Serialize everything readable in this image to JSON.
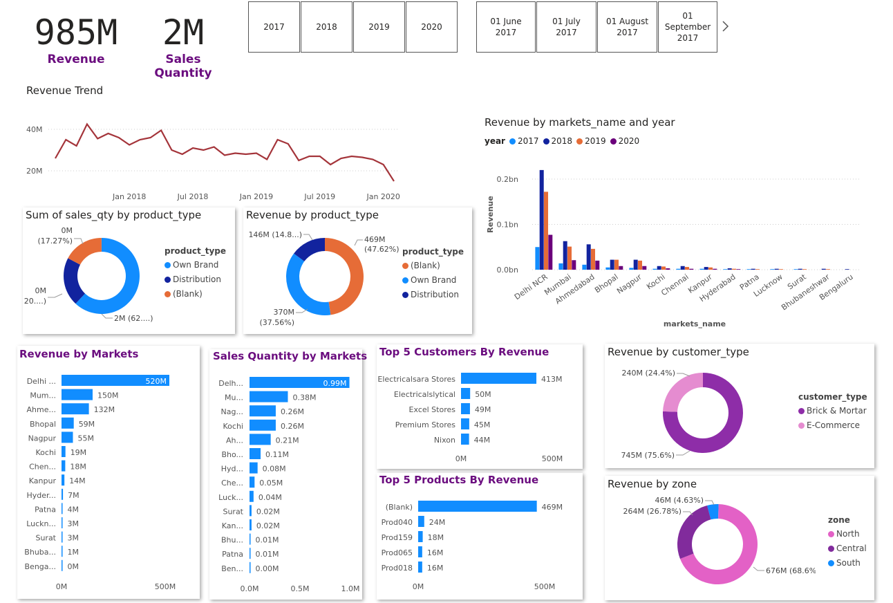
{
  "kpis": [
    {
      "value": "985M",
      "label": "Revenue"
    },
    {
      "value": "2M",
      "label": "Sales Quantity"
    }
  ],
  "year_slicer": [
    "2017",
    "2018",
    "2019",
    "2020"
  ],
  "date_slicer": [
    "01 June 2017",
    "01 July 2017",
    "01 August 2017",
    "01 September 2017"
  ],
  "colors": {
    "blue": "#118DFF",
    "navy": "#12239E",
    "orange": "#E66C37",
    "purple": "#6B007B",
    "dark_red": "#A4343A",
    "brick": "#8E2DA8",
    "pink": "#E97FD6",
    "pink_light": "#E58CD0",
    "north": "#E361C6",
    "central": "#812B9C",
    "south": "#118DFF",
    "title_purple": "#6b0d7f"
  },
  "revenue_trend": {
    "title": "Revenue Trend",
    "y_ticks": [
      "40M",
      "20M"
    ],
    "y_tick_values": [
      40,
      20
    ],
    "x_ticks": [
      "Jan 2018",
      "Jul 2018",
      "Jan 2019",
      "Jul 2019",
      "Jan 2020"
    ],
    "x_tick_index": [
      7,
      13,
      19,
      25,
      31
    ],
    "values": [
      26,
      35,
      32,
      42.5,
      35.5,
      38,
      36,
      32.5,
      35,
      36,
      39.5,
      30,
      28,
      31,
      30,
      31.5,
      27.5,
      28.5,
      28,
      28.5,
      25.5,
      35,
      33,
      25,
      27,
      27,
      23,
      26,
      27,
      26.5,
      25.5,
      23,
      15
    ]
  },
  "sales_qty_by_type": {
    "title": "Sum of sales_qty by product_type",
    "legend_title": "product_type",
    "items": [
      {
        "name": "Own Brand",
        "share": 62.0,
        "color": "#118DFF"
      },
      {
        "name": "Distribution",
        "share": 20.7,
        "color": "#12239E"
      },
      {
        "name": "(Blank)",
        "share": 17.27,
        "color": "#E66C37"
      }
    ],
    "labels": [
      "0M",
      "(17.27%)",
      "0M",
      "(20....)",
      "2M (62....)"
    ]
  },
  "revenue_by_type": {
    "title": "Revenue by product_type",
    "legend_title": "product_type",
    "items": [
      {
        "name": "(Blank)",
        "share": 47.62,
        "color": "#E66C37"
      },
      {
        "name": "Own Brand",
        "share": 37.56,
        "color": "#118DFF"
      },
      {
        "name": "Distribution",
        "share": 14.82,
        "color": "#12239E"
      }
    ],
    "labels": [
      "146M (14.8...)",
      "469M",
      "(47.62%)",
      "370M",
      "(37.56%)"
    ]
  },
  "market_year": {
    "title": "Revenue by markets_name and year",
    "legend_title": "year",
    "years": [
      "2017",
      "2018",
      "2019",
      "2020"
    ],
    "ylabel": "Revenue",
    "xlabel": "markets_name",
    "y_ticks": [
      "0.2bn",
      "0.1bn",
      "0.0bn"
    ],
    "y_tick_values": [
      0.2,
      0.1,
      0.0
    ],
    "markets": [
      "Delhi NCR",
      "Mumbai",
      "Ahmedabad",
      "Bhopal",
      "Nagpur",
      "Kochi",
      "Chennai",
      "Kanpur",
      "Hyderabad",
      "Patna",
      "Lucknow",
      "Surat",
      "Bhubaneshwar",
      "Bengaluru"
    ],
    "values": [
      [
        0.05,
        0.22,
        0.172,
        0.077
      ],
      [
        0.014,
        0.063,
        0.051,
        0.021
      ],
      [
        0.011,
        0.056,
        0.046,
        0.02
      ],
      [
        0.005,
        0.022,
        0.022,
        0.008
      ],
      [
        0.004,
        0.022,
        0.02,
        0.008
      ],
      [
        0.002,
        0.008,
        0.007,
        0.003
      ],
      [
        0.002,
        0.008,
        0.006,
        0.002
      ],
      [
        0.002,
        0.006,
        0.005,
        0.002
      ],
      [
        0.001,
        0.003,
        0.002,
        0.001
      ],
      [
        0.001,
        0.002,
        0.001,
        0.0
      ],
      [
        0.001,
        0.002,
        0.001,
        0.0
      ],
      [
        0.001,
        0.002,
        0.001,
        0.0
      ],
      [
        0.0,
        0.002,
        0.001,
        0.0
      ],
      [
        0.0,
        0.001,
        0.0,
        0.0
      ]
    ]
  },
  "revenue_by_markets": {
    "title": "Revenue by Markets",
    "max": 520,
    "axis_ticks": [
      "0M",
      "500M"
    ],
    "axis_tick_values": [
      0,
      500
    ],
    "rows": [
      {
        "label": "Delhi ...",
        "value": 520,
        "text": "520M"
      },
      {
        "label": "Mum...",
        "value": 150,
        "text": "150M"
      },
      {
        "label": "Ahme...",
        "value": 132,
        "text": "132M"
      },
      {
        "label": "Bhopal",
        "value": 59,
        "text": "59M"
      },
      {
        "label": "Nagpur",
        "value": 55,
        "text": "55M"
      },
      {
        "label": "Kochi",
        "value": 19,
        "text": "19M"
      },
      {
        "label": "Chen...",
        "value": 18,
        "text": "18M"
      },
      {
        "label": "Kanpur",
        "value": 14,
        "text": "14M"
      },
      {
        "label": "Hyder...",
        "value": 7,
        "text": "7M"
      },
      {
        "label": "Patna",
        "value": 4,
        "text": "4M"
      },
      {
        "label": "Luckn...",
        "value": 3,
        "text": "3M"
      },
      {
        "label": "Surat",
        "value": 3,
        "text": "3M"
      },
      {
        "label": "Bhuba...",
        "value": 1,
        "text": "1M"
      },
      {
        "label": "Benga...",
        "value": 0.2,
        "text": "0M"
      }
    ]
  },
  "qty_by_markets": {
    "title": "Sales Quantity by Markets",
    "max": 1.0,
    "axis_ticks": [
      "0.0M",
      "0.5M",
      "1.0M"
    ],
    "axis_tick_values": [
      0,
      0.5,
      1.0
    ],
    "rows": [
      {
        "label": "Delh...",
        "value": 0.99,
        "text": "0.99M"
      },
      {
        "label": "Mu...",
        "value": 0.38,
        "text": "0.38M"
      },
      {
        "label": "Nag...",
        "value": 0.26,
        "text": "0.26M"
      },
      {
        "label": "Kochi",
        "value": 0.26,
        "text": "0.26M"
      },
      {
        "label": "Ah...",
        "value": 0.21,
        "text": "0.21M"
      },
      {
        "label": "Bho...",
        "value": 0.11,
        "text": "0.11M"
      },
      {
        "label": "Hyd...",
        "value": 0.08,
        "text": "0.08M"
      },
      {
        "label": "Che...",
        "value": 0.05,
        "text": "0.05M"
      },
      {
        "label": "Luck...",
        "value": 0.04,
        "text": "0.04M"
      },
      {
        "label": "Surat",
        "value": 0.02,
        "text": "0.02M"
      },
      {
        "label": "Kan...",
        "value": 0.02,
        "text": "0.02M"
      },
      {
        "label": "Bhu...",
        "value": 0.01,
        "text": "0.01M"
      },
      {
        "label": "Patna",
        "value": 0.01,
        "text": "0.01M"
      },
      {
        "label": "Ben...",
        "value": 0.002,
        "text": "0.00M"
      }
    ]
  },
  "top_customers": {
    "title": "Top 5 Customers By Revenue",
    "max": 500,
    "axis_ticks": [
      "0M",
      "500M"
    ],
    "axis_tick_values": [
      0,
      500
    ],
    "rows": [
      {
        "label": "Electricalsara Stores",
        "value": 413,
        "text": "413M"
      },
      {
        "label": "Electricalslytical",
        "value": 50,
        "text": "50M"
      },
      {
        "label": "Excel Stores",
        "value": 49,
        "text": "49M"
      },
      {
        "label": "Premium Stores",
        "value": 45,
        "text": "45M"
      },
      {
        "label": "Nixon",
        "value": 44,
        "text": "44M"
      }
    ]
  },
  "top_products": {
    "title": "Top 5 Products By Revenue",
    "max": 500,
    "axis_ticks": [
      "0M",
      "500M"
    ],
    "axis_tick_values": [
      0,
      500
    ],
    "rows": [
      {
        "label": "(Blank)",
        "value": 469,
        "text": "469M"
      },
      {
        "label": "Prod040",
        "value": 24,
        "text": "24M"
      },
      {
        "label": "Prod159",
        "value": 18,
        "text": "18M"
      },
      {
        "label": "Prod065",
        "value": 16,
        "text": "16M"
      },
      {
        "label": "Prod018",
        "value": 16,
        "text": "16M"
      }
    ]
  },
  "customer_type": {
    "title": "Revenue by customer_type",
    "legend_title": "customer_type",
    "items": [
      {
        "name": "Brick & Mortar",
        "share": 75.6,
        "color": "#8E2DA8"
      },
      {
        "name": "E-Commerce",
        "share": 24.4,
        "color": "#E58CD0"
      }
    ],
    "labels": [
      "240M (24.4%)",
      "745M (75.6%)"
    ]
  },
  "zone": {
    "title": "Revenue by zone",
    "legend_title": "zone",
    "items": [
      {
        "name": "North",
        "share": 68.6,
        "color": "#E361C6"
      },
      {
        "name": "Central",
        "share": 26.78,
        "color": "#812B9C"
      },
      {
        "name": "South",
        "share": 4.63,
        "color": "#118DFF"
      }
    ],
    "labels": [
      "46M (4.63%)",
      "264M (26.78%)",
      "676M (68.6%)"
    ]
  }
}
